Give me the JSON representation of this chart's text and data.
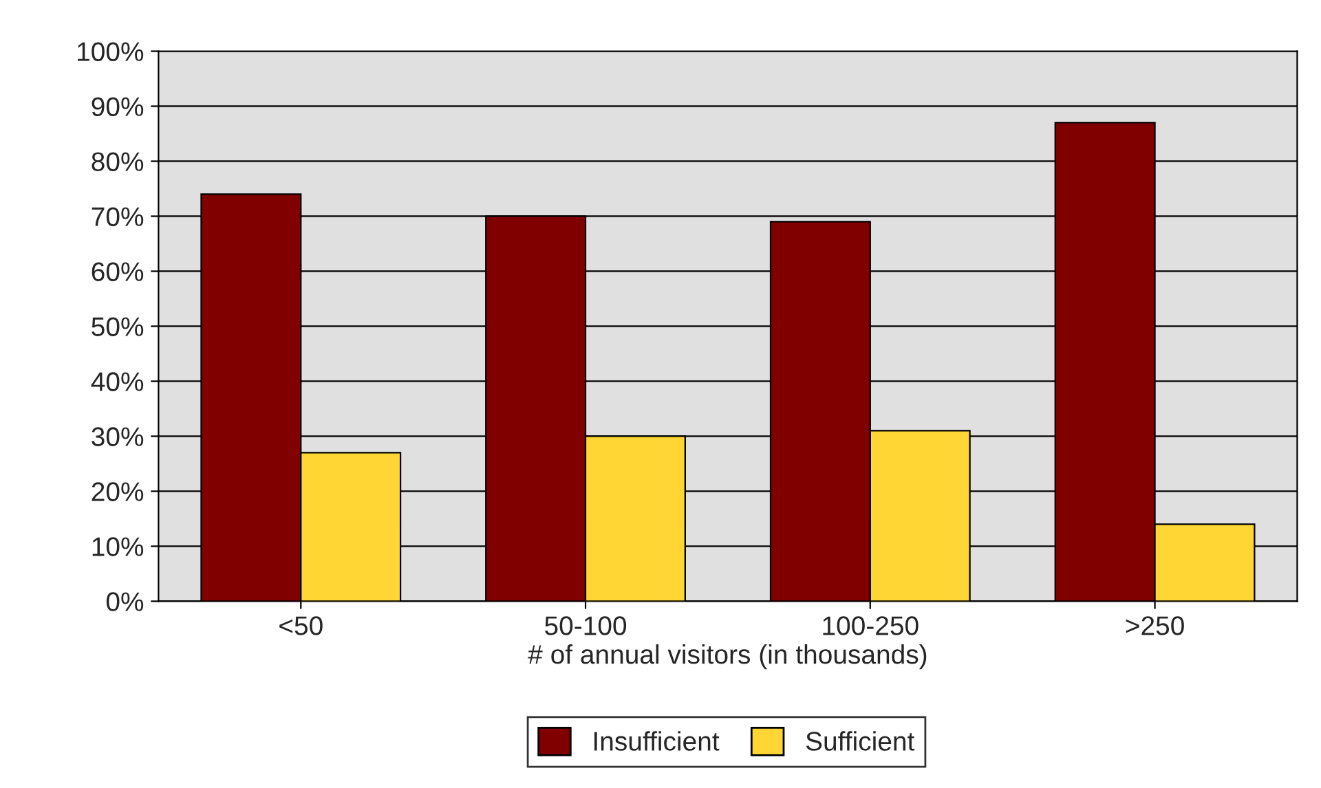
{
  "chart_data": {
    "type": "bar",
    "xlabel": "# of annual visitors (in thousands)",
    "categories": [
      "<50",
      "50-100",
      "100-250",
      ">250"
    ],
    "series": [
      {
        "name": "Insufficient",
        "color": "#800000",
        "values": [
          74,
          70,
          69,
          87
        ]
      },
      {
        "name": "Sufficient",
        "color": "#ffd633",
        "values": [
          27,
          30,
          31,
          14
        ]
      }
    ],
    "ylim": [
      0,
      100
    ],
    "yticks": [
      {
        "value": 0,
        "label": "0%"
      },
      {
        "value": 10,
        "label": "10%"
      },
      {
        "value": 20,
        "label": "20%"
      },
      {
        "value": 30,
        "label": "30%"
      },
      {
        "value": 40,
        "label": "40%"
      },
      {
        "value": 50,
        "label": "50%"
      },
      {
        "value": 60,
        "label": "60%"
      },
      {
        "value": 70,
        "label": "70%"
      },
      {
        "value": 80,
        "label": "80%"
      },
      {
        "value": 90,
        "label": "90%"
      },
      {
        "value": 100,
        "label": "100%"
      }
    ],
    "grid": "y",
    "legend": "bottom"
  }
}
